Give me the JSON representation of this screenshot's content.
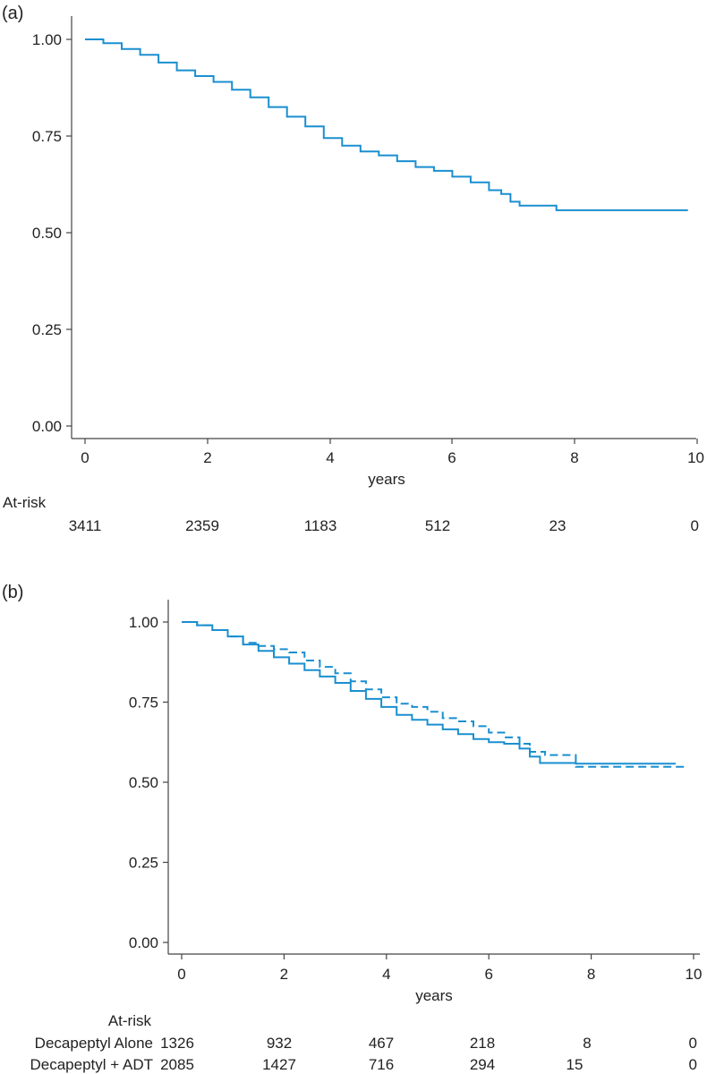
{
  "colors": {
    "curve": "#1a8fd0",
    "axis": "#444444"
  },
  "chart_data": [
    {
      "type": "line",
      "panel_label": "(a)",
      "xlabel": "years",
      "ylabel": "",
      "xlim": [
        0,
        10
      ],
      "ylim": [
        0,
        1
      ],
      "x_ticks": [
        "0",
        "2",
        "4",
        "6",
        "8",
        "10"
      ],
      "y_ticks": [
        "0.00",
        "0.25",
        "0.50",
        "0.75",
        "1.00"
      ],
      "series": [
        {
          "style": "solid",
          "points": [
            [
              0,
              1.0
            ],
            [
              0.3,
              0.99
            ],
            [
              0.6,
              0.975
            ],
            [
              0.9,
              0.96
            ],
            [
              1.2,
              0.94
            ],
            [
              1.5,
              0.92
            ],
            [
              1.8,
              0.905
            ],
            [
              2.1,
              0.89
            ],
            [
              2.4,
              0.87
            ],
            [
              2.7,
              0.85
            ],
            [
              3.0,
              0.825
            ],
            [
              3.3,
              0.8
            ],
            [
              3.6,
              0.775
            ],
            [
              3.9,
              0.745
            ],
            [
              4.2,
              0.725
            ],
            [
              4.5,
              0.71
            ],
            [
              4.8,
              0.7
            ],
            [
              5.1,
              0.685
            ],
            [
              5.4,
              0.67
            ],
            [
              5.7,
              0.66
            ],
            [
              6.0,
              0.645
            ],
            [
              6.3,
              0.63
            ],
            [
              6.6,
              0.61
            ],
            [
              6.8,
              0.6
            ],
            [
              6.95,
              0.58
            ],
            [
              7.1,
              0.57
            ],
            [
              7.7,
              0.565
            ],
            [
              7.7,
              0.558
            ],
            [
              9.85,
              0.558
            ]
          ]
        }
      ],
      "at_risk": {
        "title": "At-risk",
        "rows": [
          {
            "label": "",
            "values": [
              "3411",
              "2359",
              "1183",
              "512",
              "23",
              "0"
            ]
          }
        ]
      }
    },
    {
      "type": "line",
      "panel_label": "(b)",
      "xlabel": "years",
      "ylabel": "",
      "xlim": [
        0,
        10
      ],
      "ylim": [
        0,
        1
      ],
      "x_ticks": [
        "0",
        "2",
        "4",
        "6",
        "8",
        "10"
      ],
      "y_ticks": [
        "0.00",
        "0.25",
        "0.50",
        "0.75",
        "1.00"
      ],
      "series": [
        {
          "style": "solid",
          "points": [
            [
              0,
              1.0
            ],
            [
              0.3,
              0.99
            ],
            [
              0.6,
              0.975
            ],
            [
              0.9,
              0.955
            ],
            [
              1.2,
              0.93
            ],
            [
              1.5,
              0.91
            ],
            [
              1.8,
              0.89
            ],
            [
              2.1,
              0.87
            ],
            [
              2.4,
              0.85
            ],
            [
              2.7,
              0.83
            ],
            [
              3.0,
              0.81
            ],
            [
              3.3,
              0.785
            ],
            [
              3.6,
              0.76
            ],
            [
              3.9,
              0.735
            ],
            [
              4.2,
              0.71
            ],
            [
              4.5,
              0.695
            ],
            [
              4.8,
              0.68
            ],
            [
              5.1,
              0.665
            ],
            [
              5.4,
              0.65
            ],
            [
              5.7,
              0.635
            ],
            [
              6.0,
              0.625
            ],
            [
              6.3,
              0.62
            ],
            [
              6.6,
              0.605
            ],
            [
              6.8,
              0.58
            ],
            [
              7.0,
              0.56
            ],
            [
              7.7,
              0.558
            ],
            [
              9.65,
              0.558
            ]
          ]
        },
        {
          "style": "dashed",
          "points": [
            [
              0,
              1.0
            ],
            [
              0.3,
              0.99
            ],
            [
              0.6,
              0.975
            ],
            [
              0.9,
              0.955
            ],
            [
              1.2,
              0.935
            ],
            [
              1.5,
              0.925
            ],
            [
              1.8,
              0.915
            ],
            [
              2.1,
              0.905
            ],
            [
              2.4,
              0.88
            ],
            [
              2.7,
              0.86
            ],
            [
              3.0,
              0.84
            ],
            [
              3.3,
              0.815
            ],
            [
              3.6,
              0.79
            ],
            [
              3.9,
              0.765
            ],
            [
              4.2,
              0.745
            ],
            [
              4.5,
              0.735
            ],
            [
              4.8,
              0.72
            ],
            [
              5.1,
              0.7
            ],
            [
              5.4,
              0.69
            ],
            [
              5.7,
              0.675
            ],
            [
              6.0,
              0.655
            ],
            [
              6.3,
              0.64
            ],
            [
              6.6,
              0.62
            ],
            [
              6.8,
              0.595
            ],
            [
              7.1,
              0.585
            ],
            [
              7.7,
              0.585
            ],
            [
              7.7,
              0.548
            ],
            [
              9.85,
              0.548
            ]
          ]
        }
      ],
      "at_risk": {
        "title": "At-risk",
        "rows": [
          {
            "label": "Decapeptyl Alone",
            "values": [
              "1326",
              "932",
              "467",
              "218",
              "8",
              "0"
            ]
          },
          {
            "label": "Decapeptyl + ADT",
            "values": [
              "2085",
              "1427",
              "716",
              "294",
              "15",
              "0"
            ]
          }
        ]
      }
    }
  ]
}
